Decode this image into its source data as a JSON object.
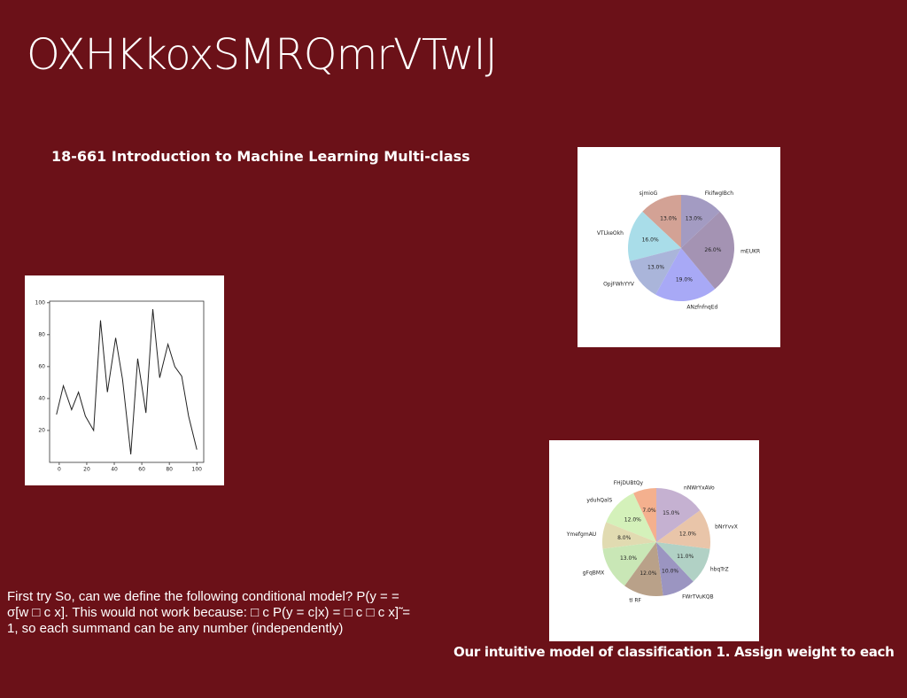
{
  "title": "OXHKkoxSMRQmrVTwIJ",
  "subtitle": "18-661 Introduction to Machine Learning Multi-class",
  "body": "First try So, can we define the following conditional model? P(y = = σ[w □ c x]. This would not work because: □ c P(y = c|x) = □ c □ c x]̃ = 1, so each summand can be any number (independently)",
  "caption": "Our intuitive model of classification 1. Assign weight to each",
  "chart_data": [
    {
      "type": "line",
      "x": [
        -2,
        3,
        9,
        14,
        19,
        25,
        30,
        35,
        41,
        46,
        52,
        57,
        63,
        68,
        73,
        79,
        84,
        89,
        94,
        100
      ],
      "series": [
        {
          "color": "#222222",
          "values": [
            30,
            48,
            33,
            44,
            29,
            20,
            89,
            44,
            78,
            52,
            5,
            65,
            31,
            96,
            53,
            74,
            60,
            54,
            29,
            8
          ]
        }
      ],
      "xlim": [
        -7,
        105
      ],
      "ylim": [
        0,
        101
      ],
      "xticks": [
        0,
        20,
        40,
        60,
        80,
        100
      ],
      "yticks": [
        20,
        40,
        60,
        80,
        100
      ]
    },
    {
      "type": "pie",
      "categories": [
        "sjmioG",
        "VTLkeOkh",
        "OpjFWhYYV",
        "ANzfnfnqEd",
        "mEUKR",
        "FkifwgIBch"
      ],
      "values": [
        13,
        16,
        13,
        19,
        26,
        13
      ],
      "value_labels": [
        "13.0%",
        "16.0%",
        "13.0%",
        "19.0%",
        "26.0%",
        "13.0%"
      ],
      "colors": [
        "#d3a295",
        "#a9dde9",
        "#aab5da",
        "#a8a9f6",
        "#a493b3",
        "#a39bc2"
      ]
    },
    {
      "type": "pie",
      "categories": [
        "FHjDUBtQy",
        "yduhQalS",
        "YmefgmAU",
        "gFqBMX",
        "tI RF",
        "FWrTVuKQB",
        "hbqTrZ",
        "bNrYvvX",
        "nNWrYxAVo"
      ],
      "values": [
        7,
        12,
        8,
        13,
        12,
        10,
        11,
        12,
        15
      ],
      "value_labels": [
        "7.0%",
        "12.0%",
        "8.0%",
        "13.0%",
        "12.0%",
        "10.0%",
        "11.0%",
        "12.0%",
        "15.0%"
      ],
      "colors": [
        "#f4b08e",
        "#d4f1ba",
        "#e1dbb1",
        "#c9e7b6",
        "#b9a189",
        "#9b95c1",
        "#b1d1c5",
        "#e9c5a9",
        "#c5b1d1"
      ]
    }
  ]
}
